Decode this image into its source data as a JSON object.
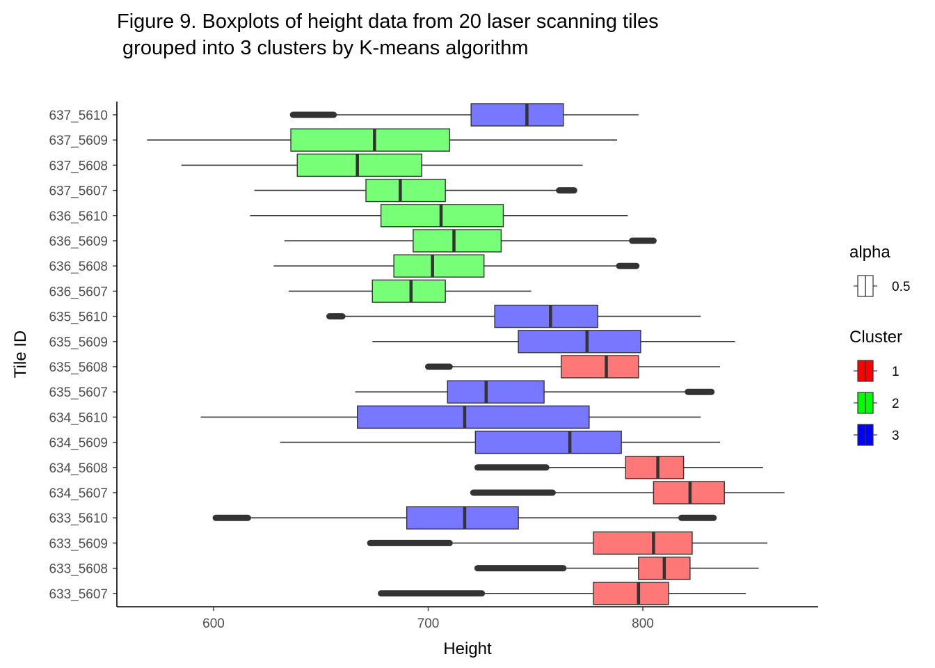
{
  "chart_data": {
    "type": "boxplot",
    "title_lines": [
      "Figure 9. Boxplots of height data from 20 laser scanning tiles",
      " grouped into 3 clusters by K-means algorithm"
    ],
    "xlabel": "Height",
    "ylabel": "Tile ID",
    "xlim": [
      555,
      885
    ],
    "x_ticks": [
      600,
      700,
      800
    ],
    "grid": false,
    "legend_placement": "right",
    "legends": [
      {
        "title": "alpha",
        "entries": [
          {
            "label": "0.5",
            "fill": "none"
          }
        ]
      },
      {
        "title": "Cluster",
        "entries": [
          {
            "label": "1",
            "fill": "#ff0000"
          },
          {
            "label": "2",
            "fill": "#00ff00"
          },
          {
            "label": "3",
            "fill": "#0000ff"
          }
        ]
      }
    ],
    "cluster_colors": {
      "1": "#ff7777",
      "2": "#77ff77",
      "3": "#7777ff"
    },
    "categories": [
      "637_5610",
      "637_5609",
      "637_5608",
      "637_5607",
      "636_5610",
      "636_5609",
      "636_5608",
      "636_5607",
      "635_5610",
      "635_5609",
      "635_5608",
      "635_5607",
      "634_5610",
      "634_5609",
      "634_5608",
      "634_5607",
      "633_5610",
      "633_5609",
      "633_5608",
      "633_5607"
    ],
    "boxes": [
      {
        "tile": "637_5610",
        "cluster": 3,
        "whisker_low": 656,
        "q1": 720,
        "median": 746,
        "q3": 763,
        "whisker_high": 798,
        "outliers_low": [
          637,
          656
        ],
        "outliers_high": null
      },
      {
        "tile": "637_5609",
        "cluster": 2,
        "whisker_low": 569,
        "q1": 636,
        "median": 675,
        "q3": 710,
        "whisker_high": 788,
        "outliers_low": null,
        "outliers_high": null
      },
      {
        "tile": "637_5608",
        "cluster": 2,
        "whisker_low": 585,
        "q1": 639,
        "median": 667,
        "q3": 697,
        "whisker_high": 772,
        "outliers_low": null,
        "outliers_high": null
      },
      {
        "tile": "637_5607",
        "cluster": 2,
        "whisker_low": 619,
        "q1": 671,
        "median": 687,
        "q3": 708,
        "whisker_high": 761,
        "outliers_low": null,
        "outliers_high": [
          761,
          768
        ]
      },
      {
        "tile": "636_5610",
        "cluster": 2,
        "whisker_low": 617,
        "q1": 678,
        "median": 706,
        "q3": 735,
        "whisker_high": 793,
        "outliers_low": null,
        "outliers_high": null
      },
      {
        "tile": "636_5609",
        "cluster": 2,
        "whisker_low": 633,
        "q1": 693,
        "median": 712,
        "q3": 734,
        "whisker_high": 795,
        "outliers_low": null,
        "outliers_high": [
          795,
          805
        ]
      },
      {
        "tile": "636_5608",
        "cluster": 2,
        "whisker_low": 628,
        "q1": 684,
        "median": 702,
        "q3": 726,
        "whisker_high": 789,
        "outliers_low": null,
        "outliers_high": [
          789,
          797
        ]
      },
      {
        "tile": "636_5607",
        "cluster": 2,
        "whisker_low": 635,
        "q1": 674,
        "median": 692,
        "q3": 708,
        "whisker_high": 748,
        "outliers_low": null,
        "outliers_high": null
      },
      {
        "tile": "635_5610",
        "cluster": 3,
        "whisker_low": 660,
        "q1": 731,
        "median": 757,
        "q3": 779,
        "whisker_high": 827,
        "outliers_low": [
          654,
          660
        ],
        "outliers_high": null
      },
      {
        "tile": "635_5609",
        "cluster": 3,
        "whisker_low": 674,
        "q1": 742,
        "median": 774,
        "q3": 799,
        "whisker_high": 843,
        "outliers_low": null,
        "outliers_high": null
      },
      {
        "tile": "635_5608",
        "cluster": 1,
        "whisker_low": 710,
        "q1": 762,
        "median": 783,
        "q3": 798,
        "whisker_high": 836,
        "outliers_low": [
          700,
          710
        ],
        "outliers_high": null
      },
      {
        "tile": "635_5607",
        "cluster": 3,
        "whisker_low": 666,
        "q1": 709,
        "median": 727,
        "q3": 754,
        "whisker_high": 821,
        "outliers_low": null,
        "outliers_high": [
          821,
          832
        ]
      },
      {
        "tile": "634_5610",
        "cluster": 3,
        "whisker_low": 594,
        "q1": 667,
        "median": 717,
        "q3": 775,
        "whisker_high": 827,
        "outliers_low": null,
        "outliers_high": null
      },
      {
        "tile": "634_5609",
        "cluster": 3,
        "whisker_low": 631,
        "q1": 722,
        "median": 766,
        "q3": 790,
        "whisker_high": 836,
        "outliers_low": null,
        "outliers_high": null
      },
      {
        "tile": "634_5608",
        "cluster": 1,
        "whisker_low": 755,
        "q1": 792,
        "median": 807,
        "q3": 819,
        "whisker_high": 856,
        "outliers_low": [
          723,
          755
        ],
        "outliers_high": null
      },
      {
        "tile": "634_5607",
        "cluster": 1,
        "whisker_low": 758,
        "q1": 805,
        "median": 822,
        "q3": 838,
        "whisker_high": 866,
        "outliers_low": [
          721,
          758
        ],
        "outliers_high": null
      },
      {
        "tile": "633_5610",
        "cluster": 3,
        "whisker_low": 616,
        "q1": 690,
        "median": 717,
        "q3": 742,
        "whisker_high": 818,
        "outliers_low": [
          601,
          616
        ],
        "outliers_high": [
          818,
          833
        ]
      },
      {
        "tile": "633_5609",
        "cluster": 1,
        "whisker_low": 710,
        "q1": 777,
        "median": 805,
        "q3": 823,
        "whisker_high": 858,
        "outliers_low": [
          673,
          710
        ],
        "outliers_high": null
      },
      {
        "tile": "633_5608",
        "cluster": 1,
        "whisker_low": 763,
        "q1": 798,
        "median": 810,
        "q3": 822,
        "whisker_high": 854,
        "outliers_low": [
          723,
          763
        ],
        "outliers_high": null
      },
      {
        "tile": "633_5607",
        "cluster": 1,
        "whisker_low": 725,
        "q1": 777,
        "median": 798,
        "q3": 812,
        "whisker_high": 848,
        "outliers_low": [
          678,
          725
        ],
        "outliers_high": null
      }
    ]
  }
}
